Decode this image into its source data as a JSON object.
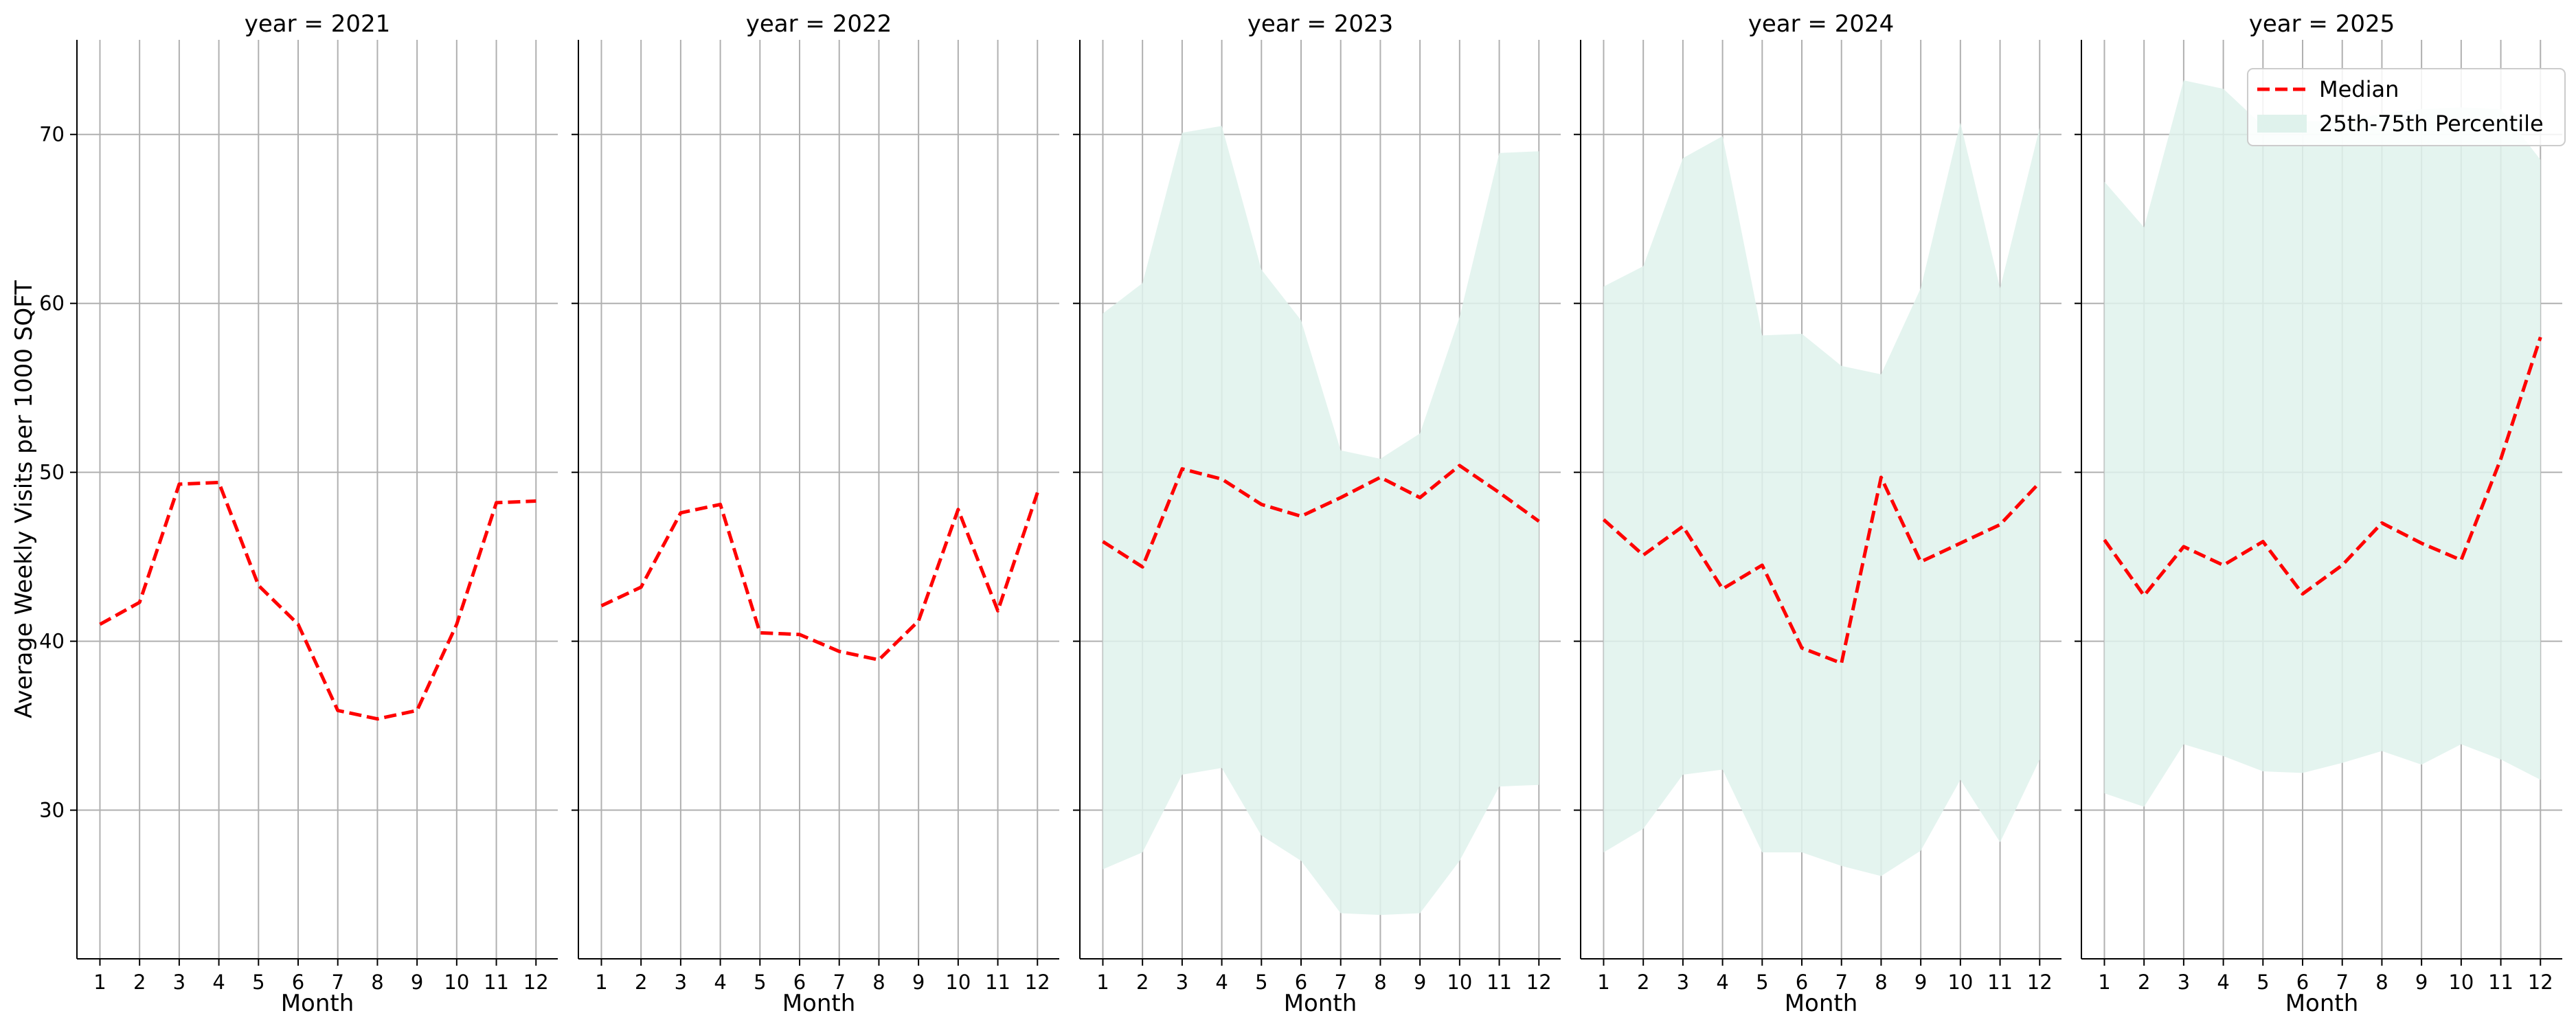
{
  "chart_data": {
    "type": "line",
    "ylabel": "Average Weekly Visits per 1000 SQFT",
    "xlabel": "Month",
    "ylim": [
      21.2,
      75.6
    ],
    "yticks": [
      30,
      40,
      50,
      60,
      70
    ],
    "xticks": [
      1,
      2,
      3,
      4,
      5,
      6,
      7,
      8,
      9,
      10,
      11,
      12
    ],
    "xlim": [
      0.42,
      12.55
    ],
    "grid": true,
    "legend": {
      "position": "top-right",
      "median_label": "Median",
      "band_label": "25th-75th Percentile"
    },
    "colors": {
      "median": "#ff0000",
      "band": "#dff2ec",
      "grid": "#b0b0b0",
      "axis": "#000000"
    },
    "panels": [
      {
        "title": "year = 2021",
        "x": [
          1,
          2,
          3,
          4,
          5,
          6,
          7,
          8,
          9,
          10,
          11,
          12
        ],
        "median": [
          41.0,
          42.3,
          49.3,
          49.4,
          43.3,
          41.0,
          35.9,
          35.4,
          35.9,
          41.0,
          48.2,
          48.3
        ]
      },
      {
        "title": "year = 2022",
        "x": [
          1,
          2,
          3,
          4,
          5,
          6,
          7,
          8,
          9,
          10,
          11,
          12
        ],
        "median": [
          42.1,
          43.2,
          47.6,
          48.1,
          40.5,
          40.4,
          39.4,
          38.9,
          41.2,
          47.8,
          41.8,
          48.8
        ]
      },
      {
        "title": "year = 2023",
        "x": [
          1,
          2,
          3,
          4,
          5,
          6,
          7,
          8,
          9,
          10,
          11,
          12
        ],
        "median": [
          45.9,
          44.4,
          50.2,
          49.6,
          48.1,
          47.4,
          48.5,
          49.7,
          48.5,
          50.4,
          48.8,
          47.1
        ],
        "p25": [
          26.5,
          27.5,
          32.1,
          32.5,
          28.5,
          27.0,
          23.9,
          23.8,
          23.9,
          27.0,
          31.4,
          31.5
        ],
        "p75": [
          59.4,
          61.2,
          70.1,
          70.5,
          62.0,
          59.0,
          51.3,
          50.8,
          52.3,
          59.2,
          68.9,
          69.0
        ]
      },
      {
        "title": "year = 2024",
        "x": [
          1,
          2,
          3,
          4,
          5,
          6,
          7,
          8,
          9,
          10,
          11,
          12
        ],
        "median": [
          47.2,
          45.1,
          46.8,
          43.1,
          44.5,
          39.6,
          38.7,
          49.7,
          44.7,
          45.8,
          46.9,
          49.4
        ],
        "p25": [
          27.5,
          28.9,
          32.1,
          32.4,
          27.5,
          27.5,
          26.7,
          26.1,
          27.6,
          31.8,
          28.1,
          33.0
        ],
        "p75": [
          61.0,
          62.2,
          68.6,
          69.9,
          58.1,
          58.2,
          56.3,
          55.8,
          60.9,
          70.7,
          60.9,
          70.4
        ]
      },
      {
        "title": "year = 2025",
        "x": [
          1,
          2,
          3,
          4,
          5,
          6,
          7,
          8,
          9,
          10,
          11,
          12
        ],
        "median": [
          46.0,
          42.7,
          45.6,
          44.5,
          45.9,
          42.8,
          44.5,
          47.0,
          45.8,
          44.8,
          50.8,
          58.0
        ],
        "p25": [
          31.0,
          30.2,
          33.9,
          33.2,
          32.3,
          32.2,
          32.8,
          33.5,
          32.7,
          33.9,
          33.0,
          31.8
        ],
        "p75": [
          67.2,
          64.5,
          73.2,
          72.7,
          70.5,
          70.8,
          70.8,
          71.2,
          71.5,
          71.6,
          71.5,
          68.5
        ]
      }
    ]
  }
}
